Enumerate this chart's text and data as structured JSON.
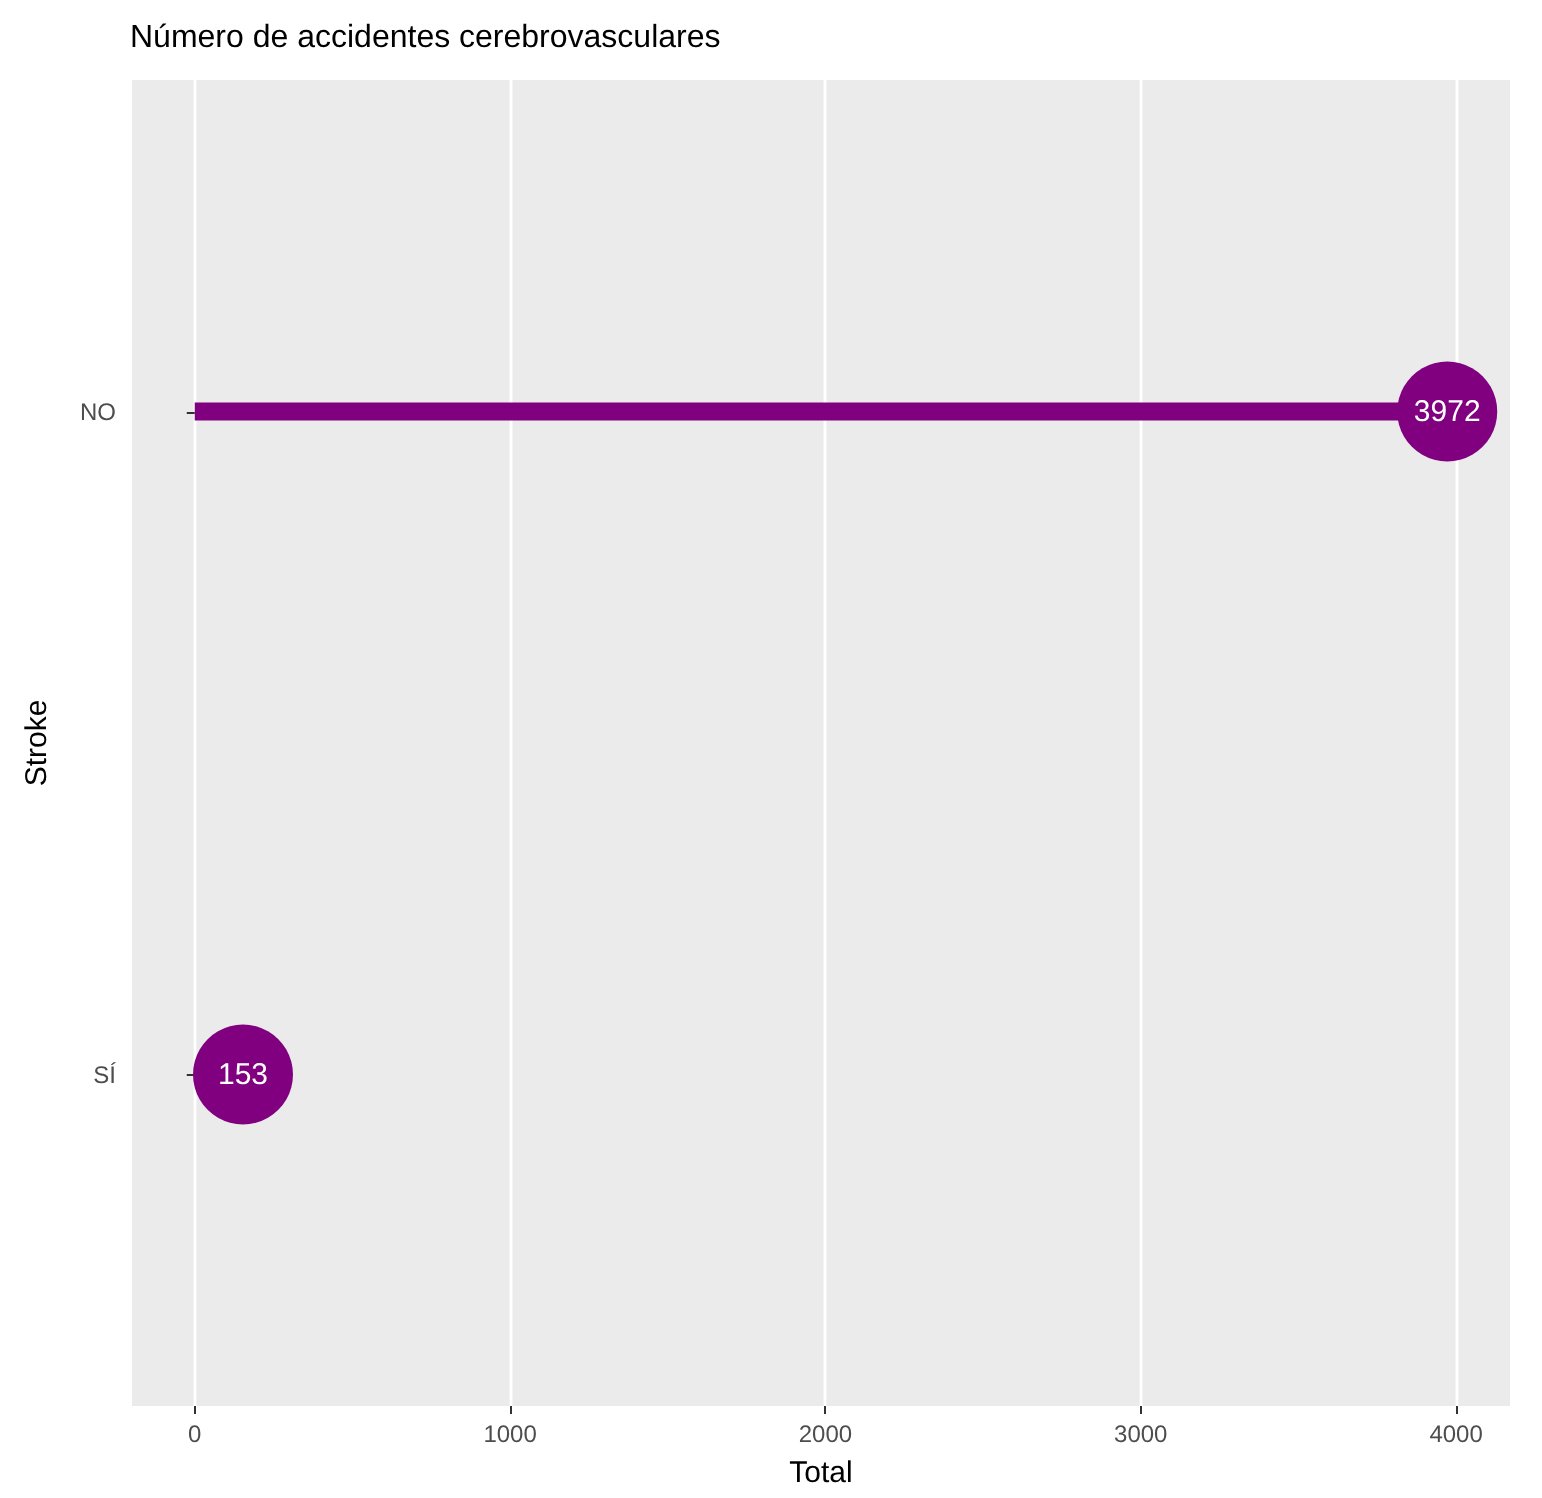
{
  "chart_data": {
    "type": "lollipop",
    "title": "Número de accidentes cerebrovasculares",
    "xlabel": "Total",
    "ylabel": "Stroke",
    "orientation": "horizontal",
    "categories": [
      "NO",
      "SÍ"
    ],
    "values": [
      3972,
      153
    ],
    "color": "#800080",
    "data_labels": true,
    "xlim": [
      -199,
      4171
    ],
    "xticks": [
      0,
      1000,
      2000,
      3000,
      4000
    ],
    "grid": "x"
  }
}
